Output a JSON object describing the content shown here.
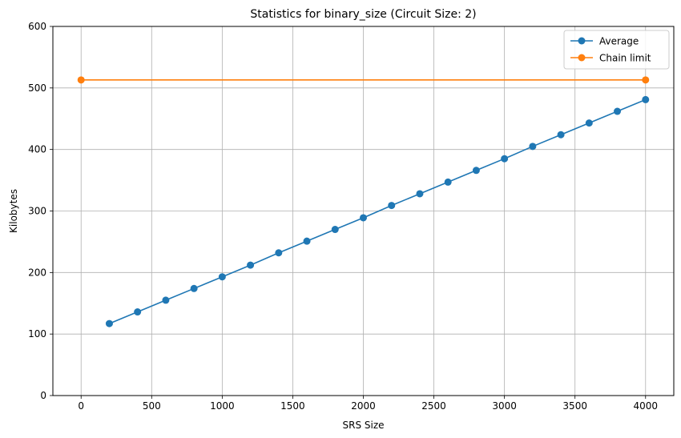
{
  "chart_data": {
    "type": "line",
    "title": "Statistics for binary_size (Circuit Size: 2)",
    "xlabel": "SRS Size",
    "ylabel": "Kilobytes",
    "xlim": [
      -200,
      4200
    ],
    "ylim": [
      0,
      600
    ],
    "xticks": [
      0,
      500,
      1000,
      1500,
      2000,
      2500,
      3000,
      3500,
      4000
    ],
    "yticks": [
      0,
      100,
      200,
      300,
      400,
      500,
      600
    ],
    "grid": true,
    "legend_position": "top-right",
    "series": [
      {
        "name": "Average",
        "color": "#1f77b4",
        "marker": "circle",
        "x": [
          200,
          400,
          600,
          800,
          1000,
          1200,
          1400,
          1600,
          1800,
          2000,
          2200,
          2400,
          2600,
          2800,
          3000,
          3200,
          3400,
          3600,
          3800,
          4000
        ],
        "y": [
          117,
          136,
          155,
          174,
          193,
          212,
          232,
          251,
          270,
          289,
          309,
          328,
          347,
          366,
          385,
          405,
          424,
          443,
          462,
          481
        ]
      },
      {
        "name": "Chain limit",
        "color": "#ff7f0e",
        "marker": "circle",
        "x": [
          0,
          4000
        ],
        "y": [
          513,
          513
        ]
      }
    ]
  }
}
